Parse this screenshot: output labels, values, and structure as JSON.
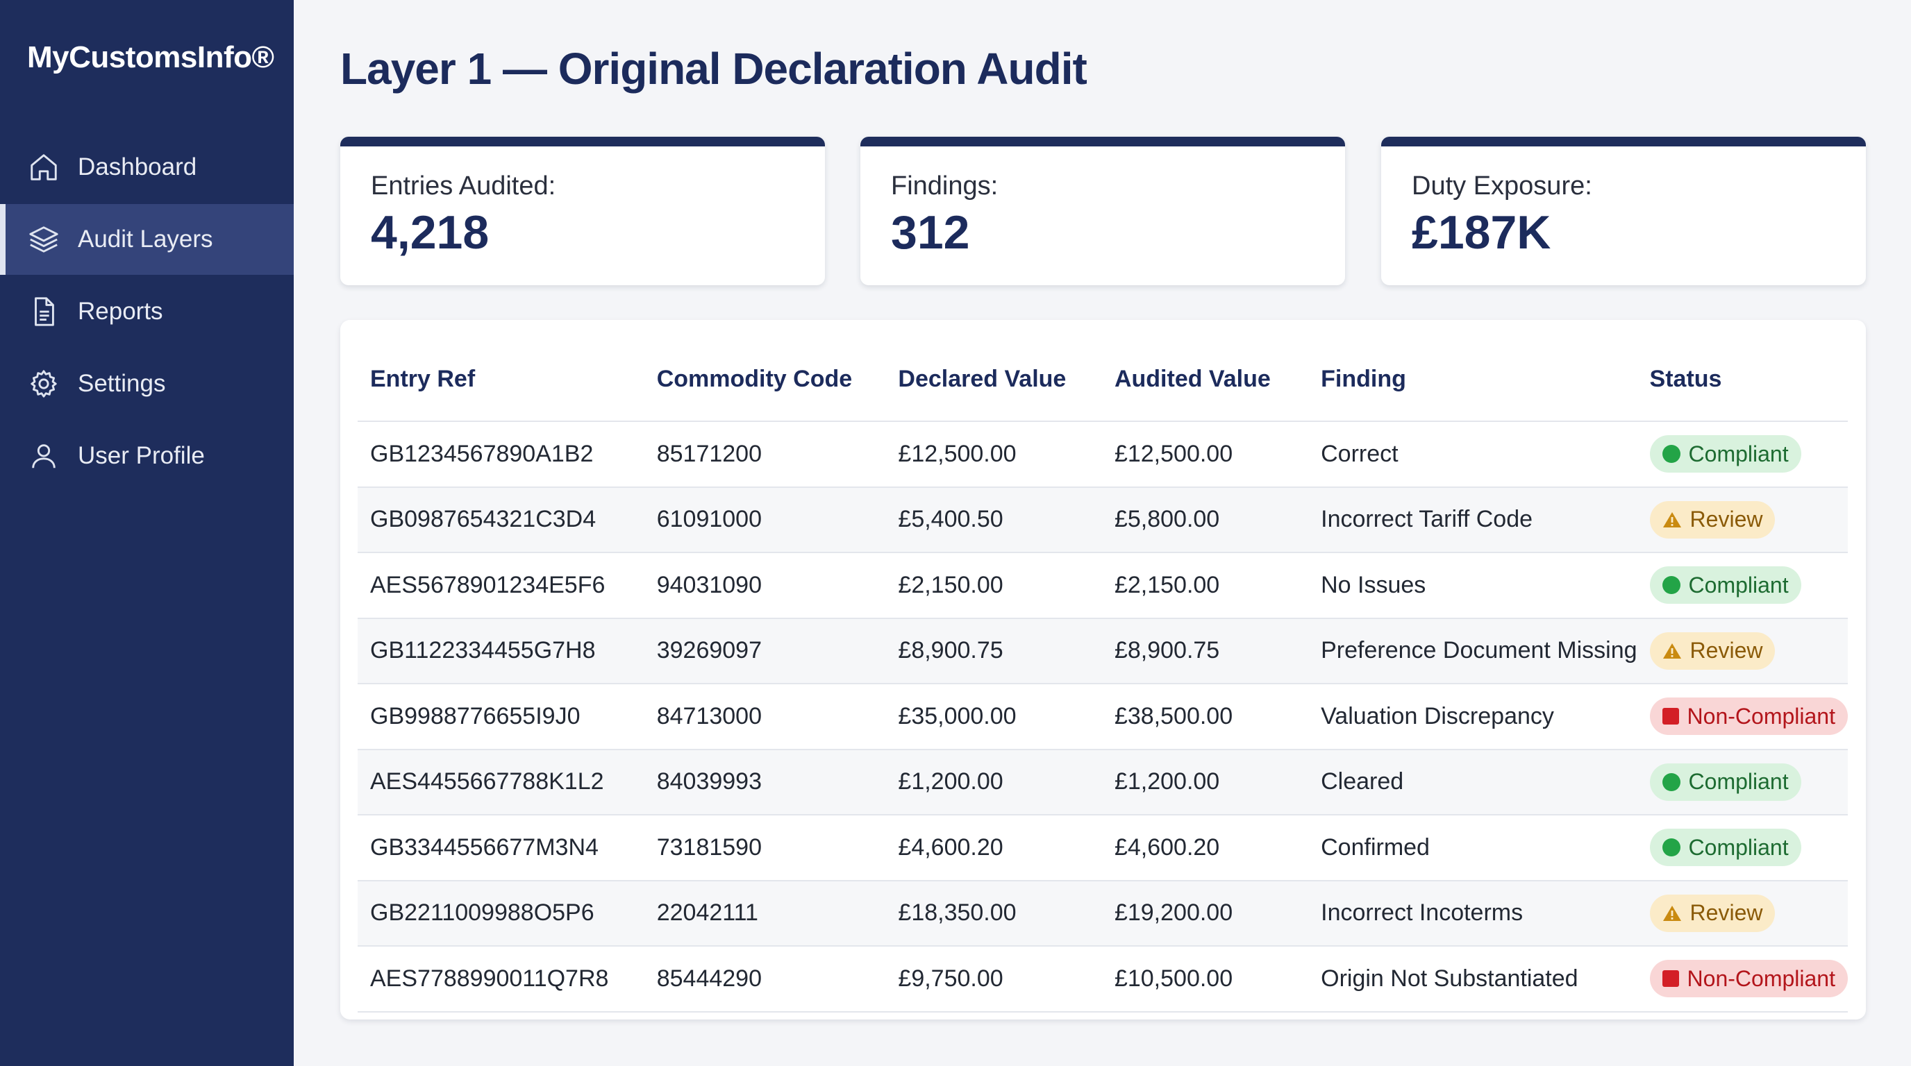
{
  "brand": "MyCustomsInfo®",
  "nav": [
    {
      "label": "Dashboard",
      "icon": "home-icon"
    },
    {
      "label": "Audit Layers",
      "icon": "layers-icon",
      "active": true
    },
    {
      "label": "Reports",
      "icon": "document-icon"
    },
    {
      "label": "Settings",
      "icon": "gear-icon"
    },
    {
      "label": "User Profile",
      "icon": "user-icon"
    }
  ],
  "page_title": "Layer 1 — Original Declaration Audit",
  "cards": [
    {
      "label": "Entries Audited:",
      "value": "4,218"
    },
    {
      "label": "Findings:",
      "value": "312"
    },
    {
      "label": "Duty Exposure:",
      "value": "£187K"
    }
  ],
  "table": {
    "headers": [
      "Entry Ref",
      "Commodity Code",
      "Declared Value",
      "Audited Value",
      "Finding",
      "Status"
    ],
    "rows": [
      {
        "ref": "GB1234567890A1B2",
        "code": "85171200",
        "declared": "£12,500.00",
        "audited": "£12,500.00",
        "finding": "Correct",
        "status": "Compliant",
        "kind": "compliant"
      },
      {
        "ref": "GB0987654321C3D4",
        "code": "61091000",
        "declared": "£5,400.50",
        "audited": "£5,800.00",
        "finding": "Incorrect Tariff Code",
        "status": "Review",
        "kind": "review"
      },
      {
        "ref": "AES5678901234E5F6",
        "code": "94031090",
        "declared": "£2,150.00",
        "audited": "£2,150.00",
        "finding": "No Issues",
        "status": "Compliant",
        "kind": "compliant"
      },
      {
        "ref": "GB1122334455G7H8",
        "code": "39269097",
        "declared": "£8,900.75",
        "audited": "£8,900.75",
        "finding": "Preference Document Missing",
        "status": "Review",
        "kind": "review"
      },
      {
        "ref": "GB9988776655I9J0",
        "code": "84713000",
        "declared": "£35,000.00",
        "audited": "£38,500.00",
        "finding": "Valuation Discrepancy",
        "status": "Non-Compliant",
        "kind": "noncompliant"
      },
      {
        "ref": "AES4455667788K1L2",
        "code": "84039993",
        "declared": "£1,200.00",
        "audited": "£1,200.00",
        "finding": "Cleared",
        "status": "Compliant",
        "kind": "compliant"
      },
      {
        "ref": "GB3344556677M3N4",
        "code": "73181590",
        "declared": "£4,600.20",
        "audited": "£4,600.20",
        "finding": "Confirmed",
        "status": "Compliant",
        "kind": "compliant"
      },
      {
        "ref": "GB2211009988O5P6",
        "code": "22042111",
        "declared": "£18,350.00",
        "audited": "£19,200.00",
        "finding": "Incorrect Incoterms",
        "status": "Review",
        "kind": "review"
      },
      {
        "ref": "AES7788990011Q7R8",
        "code": "85444290",
        "declared": "£9,750.00",
        "audited": "£10,500.00",
        "finding": "Origin Not Substantiated",
        "status": "Non-Compliant",
        "kind": "noncompliant"
      }
    ]
  },
  "colors": {
    "sidebar": "#1e2d5c",
    "sidebar_active": "#34447a",
    "accent": "#1c2b5c",
    "compliant": "#23a447",
    "review": "#c98a10",
    "noncompliant": "#d31f26"
  }
}
